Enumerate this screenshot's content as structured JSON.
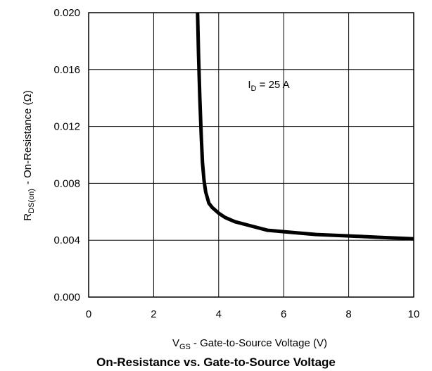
{
  "chart_data": {
    "type": "line",
    "title": "On-Resistance vs. Gate-to-Source Voltage",
    "xlabel": {
      "symbol": "V",
      "subscript": "GS",
      "text": "-  Gate-to-Source Voltage (V)"
    },
    "ylabel": {
      "symbol": "R",
      "subscript": "DS(on)",
      "text": "-  On-Resistance (Ω)"
    },
    "xlim": [
      0,
      10
    ],
    "ylim": [
      0,
      0.02
    ],
    "xticks": [
      "0",
      "2",
      "4",
      "6",
      "8",
      "10"
    ],
    "yticks": [
      "0.000",
      "0.004",
      "0.008",
      "0.012",
      "0.016",
      "0.020"
    ],
    "grid": true,
    "annotation": {
      "symbol": "I",
      "subscript": "D",
      "text": " = 25 A",
      "x": 4.9,
      "y": 0.0147
    },
    "series": [
      {
        "x": [
          3.35,
          3.38,
          3.42,
          3.46,
          3.5,
          3.55,
          3.6,
          3.7,
          3.8,
          4.0,
          4.2,
          4.5,
          5.0,
          5.5,
          6.0,
          7.0,
          8.0,
          9.0,
          10.0
        ],
        "y": [
          0.02,
          0.017,
          0.014,
          0.0115,
          0.0095,
          0.0082,
          0.0074,
          0.0066,
          0.0063,
          0.0059,
          0.0056,
          0.0053,
          0.005,
          0.0047,
          0.0046,
          0.0044,
          0.0043,
          0.0042,
          0.0041
        ]
      }
    ]
  }
}
